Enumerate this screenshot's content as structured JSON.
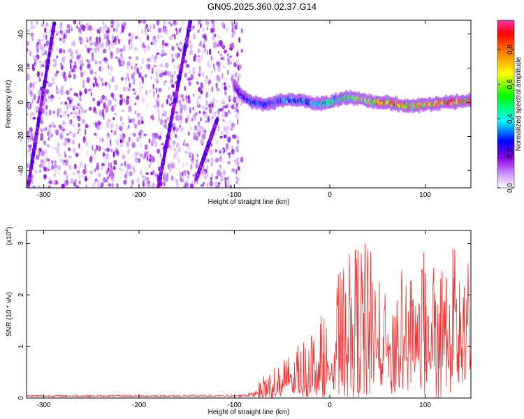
{
  "title": "GN05.2025.360.02.37.G14",
  "chart_data": [
    {
      "type": "heatmap",
      "name": "spectrogram",
      "xlabel": "Height of straight line (km)",
      "ylabel": "Frequency (Hz)",
      "xlim": [
        -318,
        148
      ],
      "ylim": [
        -50,
        48
      ],
      "xticks": [
        -300,
        -200,
        -100,
        0,
        100
      ],
      "yticks": [
        -40,
        -20,
        0,
        20,
        40
      ],
      "xtick_labels": [
        "-300",
        "-200",
        "-100",
        "0",
        "100"
      ],
      "ytick_labels": [
        "-40",
        "-20",
        "0",
        "20",
        "40"
      ],
      "colorbar": {
        "label": "Normalized spectral amplitude",
        "range": [
          0,
          0.97
        ],
        "ticks": [
          0,
          0.2,
          0.4,
          0.6,
          0.8
        ],
        "tick_labels": [
          "0.0",
          "0.2",
          "0.4",
          "0.6",
          "0.8"
        ],
        "colors": [
          "#ffffff",
          "#cc99ff",
          "#8800dd",
          "#0000ff",
          "#00ffff",
          "#00ff00",
          "#ffff00",
          "#ff8800",
          "#ff0000",
          "#ff33aa"
        ]
      },
      "noise_region_km": [
        -318,
        -92
      ],
      "diagonal_tracks": [
        {
          "x_start": -316,
          "y_start": -48,
          "x_end": -289,
          "y_end": 46
        },
        {
          "x_start": -180,
          "y_start": -50,
          "x_end": -146,
          "y_end": 48
        },
        {
          "x_start": -140,
          "y_start": -45,
          "x_end": -118,
          "y_end": -10
        }
      ],
      "signal_track": {
        "x": [
          -100,
          -95,
          -90,
          -80,
          -70,
          -60,
          -50,
          -40,
          -30,
          -20,
          -10,
          0,
          10,
          20,
          30,
          40,
          50,
          60,
          70,
          80,
          90,
          100,
          110,
          120,
          130,
          140,
          148
        ],
        "freq": [
          10,
          6,
          3,
          0,
          -1,
          0,
          1,
          2,
          1,
          0,
          -1,
          0,
          2,
          3,
          2,
          1,
          0,
          0,
          -1,
          -2,
          -2,
          -1,
          -1,
          0,
          0,
          1,
          1
        ],
        "amplitude": [
          0.25,
          0.3,
          0.35,
          0.4,
          0.4,
          0.42,
          0.45,
          0.45,
          0.45,
          0.48,
          0.5,
          0.52,
          0.55,
          0.6,
          0.68,
          0.75,
          0.82,
          0.88,
          0.88,
          0.85,
          0.82,
          0.8,
          0.85,
          0.9,
          0.92,
          0.9,
          0.9
        ]
      }
    },
    {
      "type": "line",
      "name": "snr",
      "xlabel": "Height of straight line (km)",
      "ylabel": "SNR (10 * v/v)",
      "y_multiplier": "(x10",
      "y_multiplier_exp": "4",
      "y_multiplier_close": ")",
      "xlim": [
        -318,
        148
      ],
      "ylim": [
        0,
        3.25
      ],
      "xticks": [
        -300,
        -200,
        -100,
        0,
        100
      ],
      "yticks": [
        0,
        1,
        2,
        3
      ],
      "xtick_labels": [
        "-300",
        "-200",
        "-100",
        "0",
        "100"
      ],
      "ytick_labels": [
        "0",
        "1",
        "2",
        "3"
      ],
      "color": "#ee3333",
      "envelope": {
        "x": [
          -318,
          -100,
          -80,
          -70,
          -60,
          -50,
          -40,
          -30,
          -20,
          -10,
          0,
          10,
          20,
          30,
          40,
          50,
          60,
          70,
          80,
          90,
          100,
          110,
          120,
          130,
          140,
          148
        ],
        "base": [
          0.02,
          0.02,
          0.02,
          0.05,
          0.08,
          0.12,
          0.15,
          0.2,
          0.25,
          0.3,
          0.35,
          0.55,
          0.65,
          0.7,
          0.75,
          0.75,
          0.72,
          0.7,
          0.72,
          0.72,
          0.7,
          0.7,
          0.72,
          0.72,
          0.7,
          0.8
        ],
        "peak": [
          0.06,
          0.06,
          0.12,
          0.45,
          0.6,
          0.75,
          0.9,
          1.1,
          1.4,
          1.6,
          1.8,
          2.5,
          2.8,
          3.15,
          3.0,
          2.7,
          2.5,
          2.3,
          2.7,
          2.5,
          2.9,
          2.8,
          2.7,
          3.05,
          2.9,
          2.5
        ]
      },
      "sample_step_km": 0.5
    }
  ]
}
